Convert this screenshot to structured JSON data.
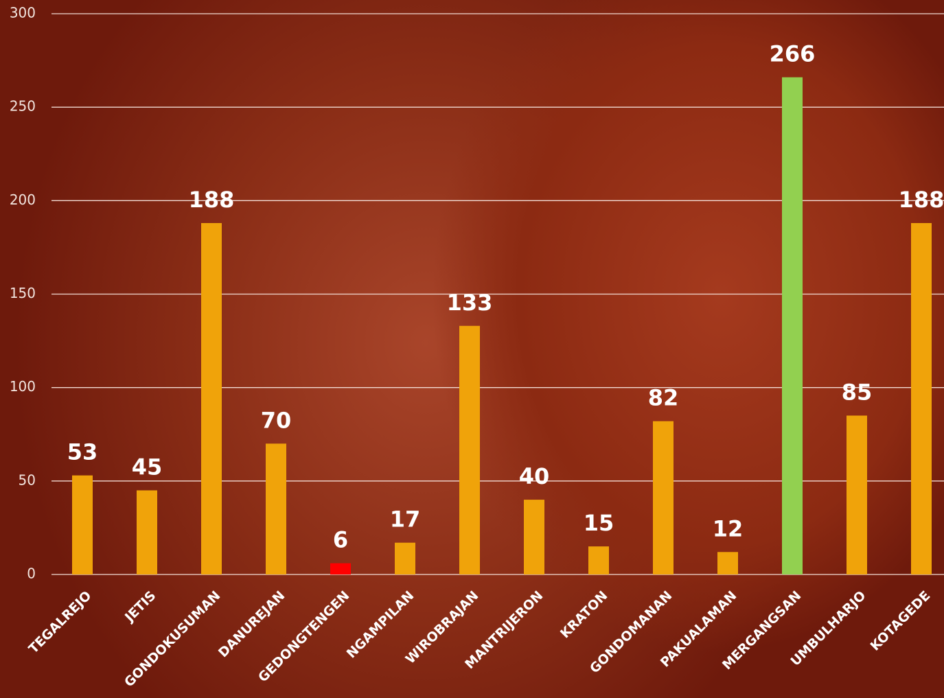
{
  "chart_data": {
    "type": "bar",
    "categories": [
      "TEGALREJO",
      "JETIS",
      "GONDOKUSUMAN",
      "DANUREJAN",
      "GEDONGTENGEN",
      "NGAMPILAN",
      "WIROBRAJAN",
      "MANTRIJERON",
      "KRATON",
      "GONDOMANAN",
      "PAKUALAMAN",
      "MERGANGSAN",
      "UMBULHARJO",
      "KOTAGEDE"
    ],
    "values": [
      53,
      45,
      188,
      70,
      6,
      17,
      133,
      40,
      15,
      82,
      12,
      266,
      85,
      188
    ],
    "colors": [
      "#f0a30a",
      "#f0a30a",
      "#f0a30a",
      "#f0a30a",
      "#ff0000",
      "#f0a30a",
      "#f0a30a",
      "#f0a30a",
      "#f0a30a",
      "#f0a30a",
      "#f0a30a",
      "#92d050",
      "#f0a30a",
      "#f0a30a"
    ],
    "ylim": [
      0,
      300
    ],
    "yticks": [
      0,
      50,
      100,
      150,
      200,
      250,
      300
    ],
    "grid": true
  }
}
